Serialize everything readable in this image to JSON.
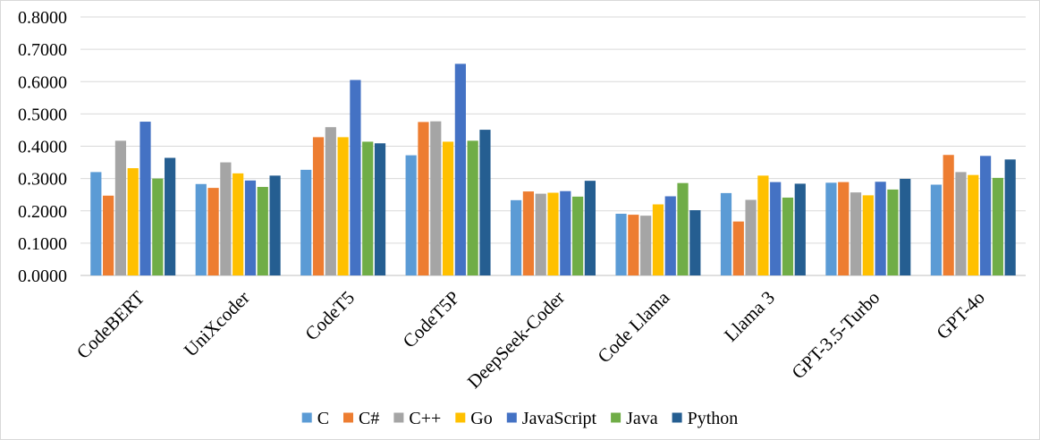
{
  "chart_data": {
    "type": "bar",
    "title": "",
    "xlabel": "",
    "ylabel": "",
    "ylim": [
      0,
      0.8
    ],
    "y_ticks": [
      "0.0000",
      "0.1000",
      "0.2000",
      "0.3000",
      "0.4000",
      "0.5000",
      "0.6000",
      "0.7000",
      "0.8000"
    ],
    "grid": true,
    "legend_position": "bottom",
    "categories": [
      "CodeBERT",
      "UniXcoder",
      "CodeT5",
      "CodeT5P",
      "DeepSeek-Coder",
      "Code Llama",
      "Llama 3",
      "GPT-3.5-Turbo",
      "GPT-4o"
    ],
    "series": [
      {
        "name": "C",
        "color": "#5b9bd5",
        "values": [
          0.32,
          0.283,
          0.327,
          0.372,
          0.233,
          0.191,
          0.255,
          0.287,
          0.281
        ]
      },
      {
        "name": "C#",
        "color": "#ed7d31",
        "values": [
          0.247,
          0.271,
          0.428,
          0.475,
          0.26,
          0.188,
          0.167,
          0.289,
          0.373
        ]
      },
      {
        "name": "C++",
        "color": "#a5a5a5",
        "values": [
          0.417,
          0.35,
          0.459,
          0.477,
          0.253,
          0.185,
          0.234,
          0.257,
          0.32
        ]
      },
      {
        "name": "Go",
        "color": "#ffc000",
        "values": [
          0.332,
          0.316,
          0.428,
          0.414,
          0.256,
          0.22,
          0.309,
          0.248,
          0.311
        ]
      },
      {
        "name": "JavaScript",
        "color": "#4472c4",
        "values": [
          0.476,
          0.294,
          0.605,
          0.655,
          0.261,
          0.245,
          0.289,
          0.29,
          0.37
        ]
      },
      {
        "name": "Java",
        "color": "#70ad47",
        "values": [
          0.3,
          0.274,
          0.414,
          0.417,
          0.244,
          0.286,
          0.241,
          0.266,
          0.302
        ]
      },
      {
        "name": "Python",
        "color": "#255e91",
        "values": [
          0.364,
          0.309,
          0.409,
          0.451,
          0.293,
          0.202,
          0.284,
          0.299,
          0.359
        ]
      }
    ]
  }
}
